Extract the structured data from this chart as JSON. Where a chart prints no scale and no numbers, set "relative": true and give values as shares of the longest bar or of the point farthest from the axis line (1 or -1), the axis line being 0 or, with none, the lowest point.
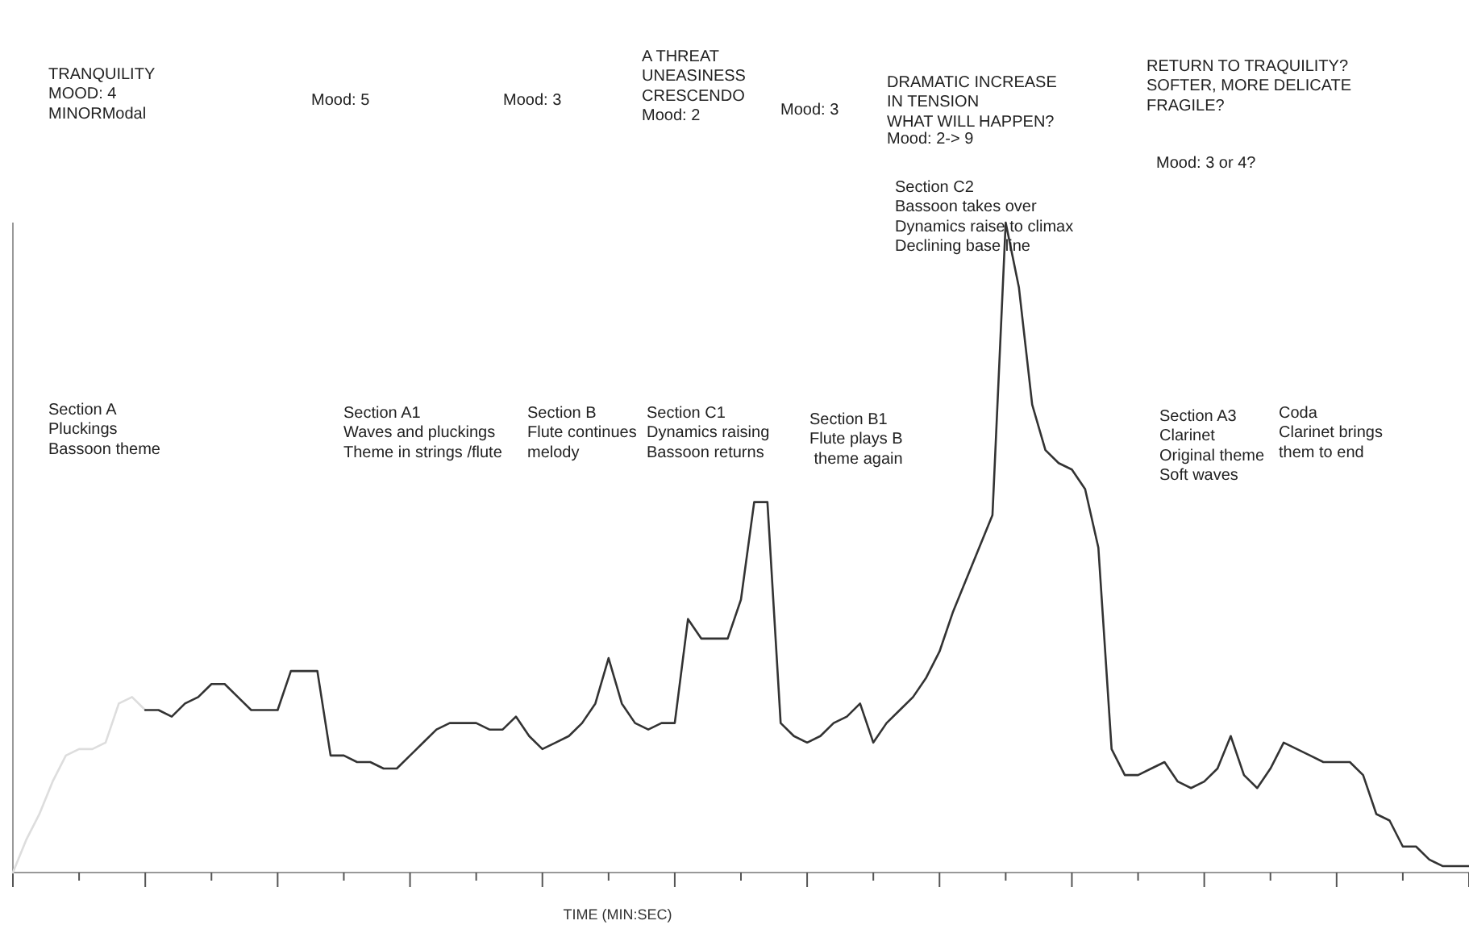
{
  "chart_data": {
    "type": "line",
    "relative": true,
    "xlabel": "TIME (MIN:SEC)",
    "categories": [
      null,
      null,
      null,
      null,
      null,
      null,
      null,
      null,
      null,
      null,
      null,
      null,
      null,
      null,
      null,
      null,
      null,
      null,
      null,
      null,
      null,
      null,
      null,
      null,
      null,
      null,
      null,
      null,
      null,
      null,
      null,
      null,
      null,
      null,
      null,
      null,
      null,
      null,
      null,
      null,
      null,
      null,
      null,
      null,
      null,
      null,
      null,
      null,
      null,
      null,
      null,
      null,
      null,
      null,
      null,
      null,
      null,
      null,
      null,
      null,
      null,
      null,
      null,
      null,
      null,
      null,
      null,
      null,
      null,
      null,
      null,
      null,
      null,
      null,
      null,
      null,
      null,
      null,
      null,
      null,
      null,
      null,
      null,
      null,
      null,
      null,
      null,
      null,
      null,
      null,
      null,
      null,
      null,
      null,
      null,
      null,
      null,
      null,
      null,
      null,
      null,
      null,
      null,
      null,
      null,
      null,
      null,
      null,
      null,
      null,
      null
    ],
    "series": [
      {
        "color": "#dddddd",
        "values": [
          0,
          0.05,
          0.09,
          0.14,
          0.18,
          0.19,
          0.19,
          0.2,
          0.26,
          0.27,
          0.25,
          null,
          null,
          null,
          null,
          null,
          null,
          null,
          null,
          null,
          null,
          null,
          null,
          null,
          null,
          null,
          null,
          null,
          null,
          null,
          null,
          null,
          null,
          null,
          null,
          null,
          null,
          null,
          null,
          null,
          null,
          null,
          null,
          null,
          null,
          null,
          null,
          null,
          null,
          null,
          null,
          null,
          null,
          null,
          null,
          null,
          null,
          null,
          null,
          null,
          null,
          null,
          null,
          null,
          null,
          null,
          null,
          null,
          null,
          null,
          null,
          null,
          null,
          null,
          null,
          null,
          null,
          null,
          null,
          null,
          null,
          null,
          null,
          null,
          null,
          null,
          null,
          null,
          null,
          null,
          null,
          null,
          null,
          null,
          null,
          null,
          null,
          null,
          null,
          null,
          null,
          null,
          null,
          null,
          null,
          null,
          null,
          null,
          null,
          null,
          null
        ]
      },
      {
        "color": "#333333",
        "values": [
          null,
          null,
          null,
          null,
          null,
          null,
          null,
          null,
          null,
          null,
          0.25,
          0.25,
          0.24,
          0.26,
          0.27,
          0.29,
          0.29,
          0.27,
          0.25,
          0.25,
          0.25,
          0.31,
          0.31,
          0.31,
          0.18,
          0.18,
          0.17,
          0.17,
          0.16,
          0.16,
          0.18,
          0.2,
          0.22,
          0.23,
          0.23,
          0.23,
          0.22,
          0.22,
          0.24,
          0.21,
          0.19,
          0.2,
          0.21,
          0.23,
          0.26,
          0.33,
          0.26,
          0.23,
          0.22,
          0.23,
          0.23,
          0.39,
          0.36,
          0.36,
          0.36,
          0.42,
          0.57,
          0.57,
          0.23,
          0.21,
          0.2,
          0.21,
          0.23,
          0.24,
          0.26,
          0.2,
          0.23,
          0.25,
          0.27,
          0.3,
          0.34,
          0.4,
          0.45,
          0.5,
          0.55,
          1,
          0.9,
          0.72,
          0.65,
          0.63,
          0.62,
          0.59,
          0.5,
          0.19,
          0.15,
          0.15,
          0.16,
          0.17,
          0.14,
          0.13,
          0.14,
          0.16,
          0.21,
          0.15,
          0.13,
          0.16,
          0.2,
          0.19,
          0.18,
          0.17,
          0.17,
          0.17,
          0.15,
          0.09,
          0.08,
          0.04,
          0.04,
          0.02,
          0.01,
          0.01,
          0.01
        ]
      }
    ],
    "annotations": [
      "TRANQUILITY\nMOOD: 4\nMINORModal",
      "Mood: 5",
      "Mood: 3",
      "A THREAT\nUNEASINESS\nCRESCENDO\nMood: 2",
      "Mood: 3",
      "DRAMATIC INCREASE\nIN TENSION\nWHAT WILL HAPPEN?",
      "Mood: 2-> 9",
      "RETURN TO TRAQUILITY?\nSOFTER, MORE DELICATE\nFRAGILE?",
      "Mood: 3 or 4?",
      "Section C2\nBassoon takes over\nDynamics raise to climax\nDeclining base line",
      "Section A\nPluckings\nBassoon theme",
      "Section A1\nWaves and pluckings\nTheme in strings /flute",
      "Section B\nFlute continues\nmelody",
      "Section C1\nDynamics raising\nBassoon returns",
      "Section B1\nFlute plays B\n theme again",
      "Section A3\nClarinet\nOriginal theme\nSoft waves",
      "Coda\nClarinet brings\nthem to end"
    ]
  }
}
